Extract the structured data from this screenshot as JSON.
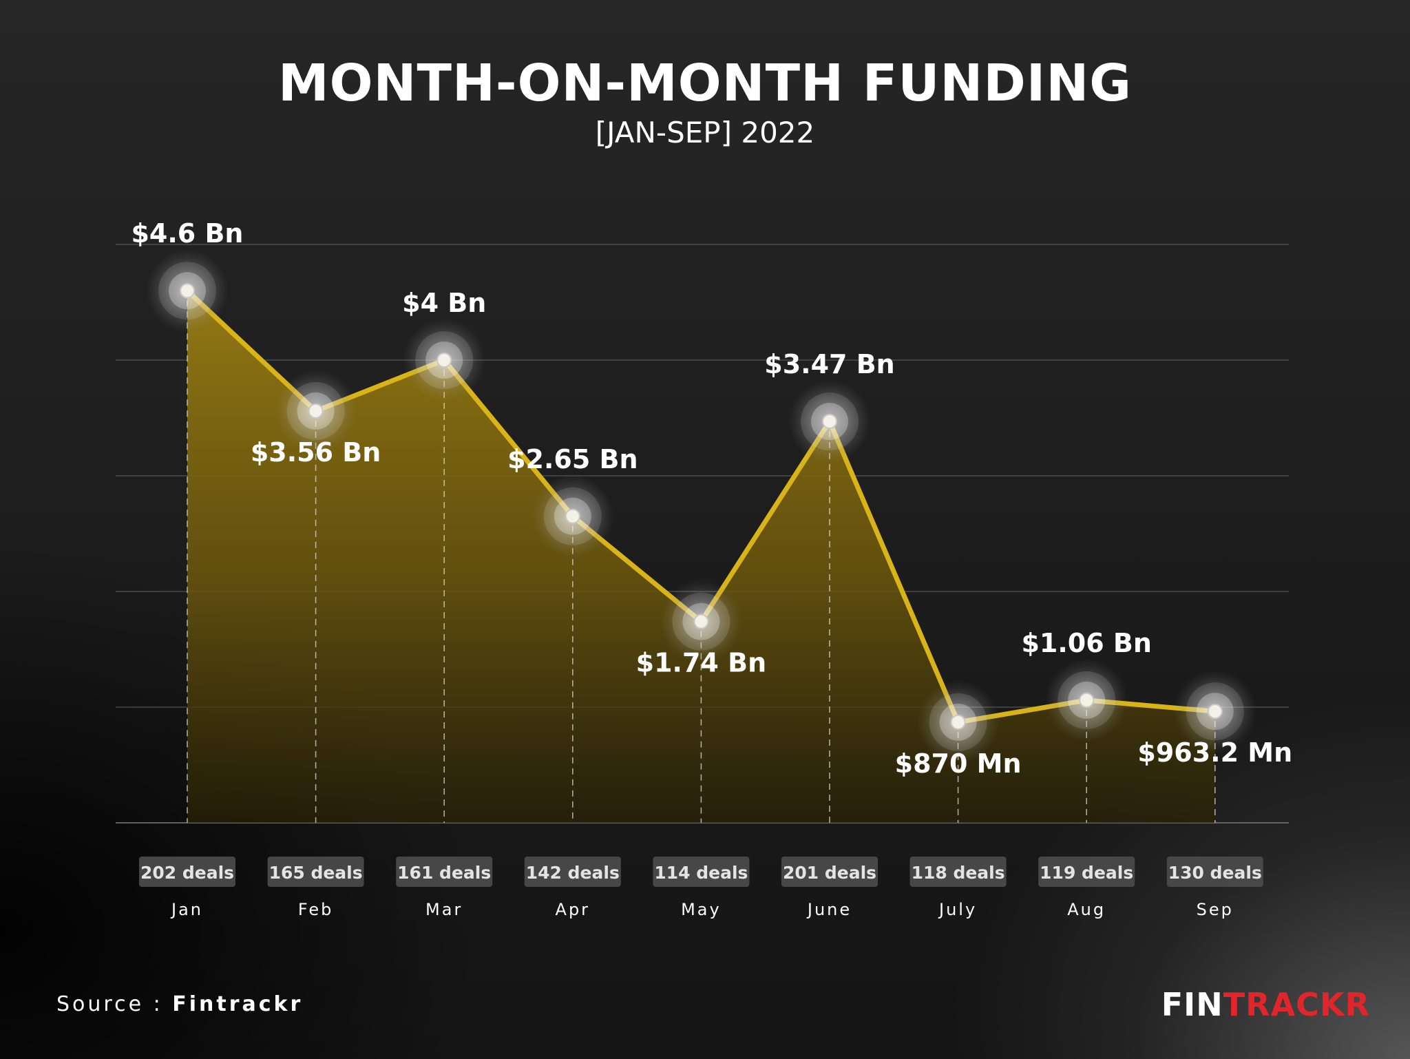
{
  "title": "MONTH-ON-MONTH FUNDING",
  "subtitle": "[JAN-SEP] 2022",
  "source": {
    "prefix": "Source : ",
    "name": "Fintrackr"
  },
  "brand": {
    "part1": "FIN",
    "part2": "TRACKR",
    "color1": "#ffffff",
    "color2": "#e0262b"
  },
  "colors": {
    "line": "#d9b418",
    "fill": "#8a7010",
    "grid": "#6a6a6a",
    "deal_badge": "#4a4a4a"
  },
  "chart_data": {
    "type": "area",
    "title": "MONTH-ON-MONTH FUNDING",
    "subtitle": "[JAN-SEP] 2022",
    "categories": [
      "Jan",
      "Feb",
      "Mar",
      "Apr",
      "May",
      "June",
      "July",
      "Aug",
      "Sep"
    ],
    "values": [
      4.6,
      3.56,
      4.0,
      2.65,
      1.74,
      3.47,
      0.87,
      1.06,
      0.9632
    ],
    "unit": "USD Bn",
    "value_labels": [
      "$4.6 Bn",
      "$3.56 Bn",
      "$4 Bn",
      "$2.65 Bn",
      "$1.74 Bn",
      "$3.47 Bn",
      "$870 Mn",
      "$1.06 Bn",
      "$963.2 Mn"
    ],
    "label_position": [
      "above",
      "below",
      "above",
      "above",
      "below",
      "above",
      "below",
      "above",
      "below"
    ],
    "deals": [
      "202 deals",
      "165 deals",
      "161 deals",
      "142 deals",
      "114 deals",
      "201 deals",
      "118 deals",
      "119 deals",
      "130 deals"
    ],
    "ylim": [
      0,
      5
    ],
    "grid": true,
    "legend": "none",
    "xlabel": "",
    "ylabel": ""
  }
}
